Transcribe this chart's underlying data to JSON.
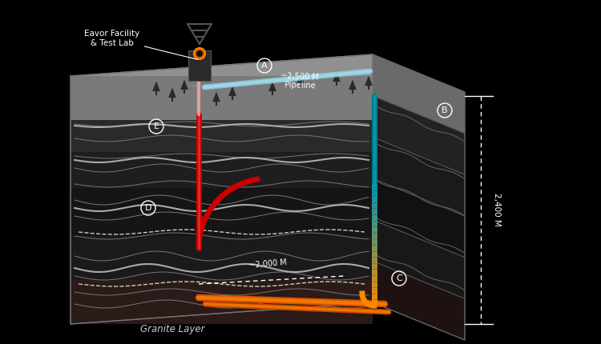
{
  "labels": {
    "facility": "Eavor Facility\n& Test Lab",
    "pipeline_dist": "~2,500 M",
    "pipeline": "Pipeline",
    "depth_horizontal": "~2,000 M",
    "depth_vertical": "2,400 M",
    "granite": "Granite Layer",
    "A": "A",
    "B": "B",
    "C": "C",
    "D": "D",
    "E": "E"
  },
  "colors": {
    "bg": "#000000",
    "surface_top": "#909090",
    "surface_edge": "#707070",
    "right_face": "#5a5a5a",
    "right_face_edge": "#404040",
    "layer0": "#7a7a7a",
    "layer1": "#2a2a2a",
    "layer2": "#1e1e1e",
    "layer3": "#151515",
    "layer4": "#1a1a1a",
    "layer5": "#2a1a18",
    "wavy_faint": "#777777",
    "wavy_bright": "#aaaaaa",
    "wavy_dashed": "#cccccc",
    "pipe_red_dark": "#cc0000",
    "pipe_red_light": "#ff4444",
    "pipe_orange_dark": "#dd5500",
    "pipe_orange_light": "#ff8800",
    "pipe_orange2_dark": "#cc4400",
    "pipe_orange2_light": "#ff9900",
    "pipe_teal_dark": "#007788",
    "pipe_teal_light": "#00aabb",
    "pipe_pink": "#ffaaaa",
    "pipe_blue_dark": "#88ccdd",
    "pipe_blue_light": "#aaddee",
    "building_body": "#2a2a2a",
    "building_edge": "#555555",
    "building_circle_face": "#cc5500",
    "building_circle_edge": "#ff8800",
    "building_circle_inner": "#111111",
    "tower": "#555555",
    "text_white": "#ffffff",
    "text_light": "#cccccc",
    "outline": "#666666",
    "front_outline": "#777777",
    "right_layer0": "#6a6a6a",
    "right_layer1": "#222222",
    "right_layer2": "#1a1a1a",
    "right_layer3": "#111111",
    "right_layer4": "#181818",
    "right_layer5": "#1e1210",
    "right_wavy": "#666666",
    "tree": "#2a2a2a",
    "dashed_line": "#888888"
  }
}
